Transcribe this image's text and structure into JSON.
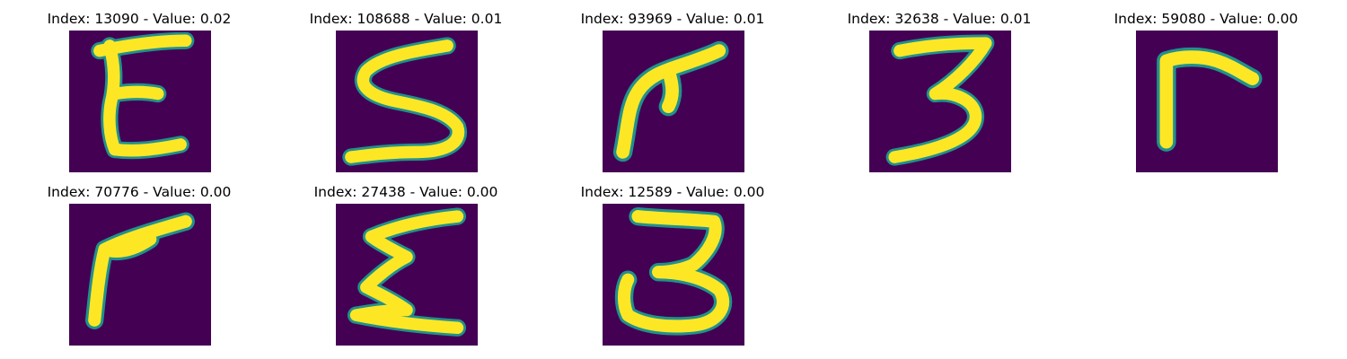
{
  "panels": [
    {
      "title": "Index: 13090 - Value: 0.02",
      "glyph": "E"
    },
    {
      "title": "Index: 108688 - Value: 0.01",
      "glyph": "S"
    },
    {
      "title": "Index: 93969 - Value: 0.01",
      "glyph": "r"
    },
    {
      "title": "Index: 32638 - Value: 0.01",
      "glyph": "3"
    },
    {
      "title": "Index: 59080 - Value: 0.00",
      "glyph": "r"
    },
    {
      "title": "Index: 70776 - Value: 0.00",
      "glyph": "r"
    },
    {
      "title": "Index: 27438 - Value: 0.00",
      "glyph": "E"
    },
    {
      "title": "Index: 12589 - Value: 0.00",
      "glyph": "3"
    }
  ],
  "colors": {
    "background": "#440154",
    "edge": "#21918c",
    "stroke": "#fde725"
  }
}
